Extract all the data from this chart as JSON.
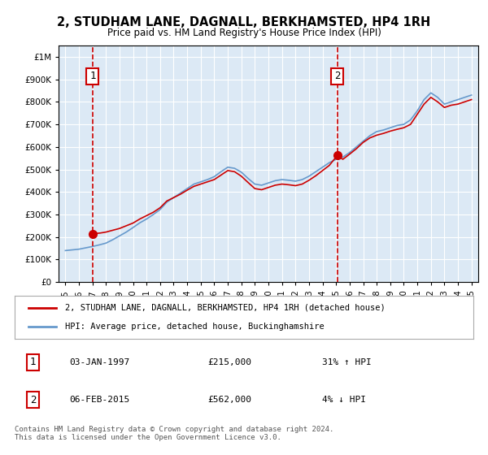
{
  "title": "2, STUDHAM LANE, DAGNALL, BERKHAMSTED, HP4 1RH",
  "subtitle": "Price paid vs. HM Land Registry's House Price Index (HPI)",
  "legend_entry1": "2, STUDHAM LANE, DAGNALL, BERKHAMSTED, HP4 1RH (detached house)",
  "legend_entry2": "HPI: Average price, detached house, Buckinghamshire",
  "annotation1_label": "1",
  "annotation1_date": "03-JAN-1997",
  "annotation1_price": "£215,000",
  "annotation1_hpi": "31% ↑ HPI",
  "annotation2_label": "2",
  "annotation2_date": "06-FEB-2015",
  "annotation2_price": "£562,000",
  "annotation2_hpi": "4% ↓ HPI",
  "footnote": "Contains HM Land Registry data © Crown copyright and database right 2024.\nThis data is licensed under the Open Government Licence v3.0.",
  "hpi_color": "#6699cc",
  "price_color": "#cc0000",
  "marker_color": "#cc0000",
  "dashed_color": "#cc0000",
  "background_color": "#dce9f5",
  "plot_bg": "#dce9f5",
  "ylim": [
    0,
    1050000
  ],
  "yticks": [
    0,
    100000,
    200000,
    300000,
    400000,
    500000,
    600000,
    700000,
    800000,
    900000,
    1000000
  ],
  "xlim_start": 1994.5,
  "xlim_end": 2025.5,
  "xticks": [
    1995,
    1996,
    1997,
    1998,
    1999,
    2000,
    2001,
    2002,
    2003,
    2004,
    2005,
    2006,
    2007,
    2008,
    2009,
    2010,
    2011,
    2012,
    2013,
    2014,
    2015,
    2016,
    2017,
    2018,
    2019,
    2020,
    2021,
    2022,
    2023,
    2024,
    2025
  ],
  "sale1_x": 1997.01,
  "sale1_y": 215000,
  "sale2_x": 2015.09,
  "sale2_y": 562000,
  "hpi_x": [
    1995,
    1995.5,
    1996,
    1996.5,
    1997,
    1997.5,
    1998,
    1998.5,
    1999,
    1999.5,
    2000,
    2000.5,
    2001,
    2001.5,
    2002,
    2002.5,
    2003,
    2003.5,
    2004,
    2004.5,
    2005,
    2005.5,
    2006,
    2006.5,
    2007,
    2007.5,
    2008,
    2008.5,
    2009,
    2009.5,
    2010,
    2010.5,
    2011,
    2011.5,
    2012,
    2012.5,
    2013,
    2013.5,
    2014,
    2014.5,
    2015,
    2015.5,
    2016,
    2016.5,
    2017,
    2017.5,
    2018,
    2018.5,
    2019,
    2019.5,
    2020,
    2020.5,
    2021,
    2021.5,
    2022,
    2022.5,
    2023,
    2023.5,
    2024,
    2024.5,
    2025
  ],
  "hpi_y": [
    140000,
    143000,
    146000,
    152000,
    158000,
    165000,
    173000,
    188000,
    205000,
    222000,
    242000,
    263000,
    280000,
    300000,
    322000,
    355000,
    375000,
    395000,
    415000,
    435000,
    445000,
    455000,
    468000,
    490000,
    510000,
    505000,
    488000,
    460000,
    435000,
    430000,
    440000,
    450000,
    455000,
    452000,
    448000,
    455000,
    470000,
    490000,
    510000,
    530000,
    545000,
    555000,
    575000,
    600000,
    625000,
    650000,
    668000,
    675000,
    685000,
    695000,
    700000,
    720000,
    760000,
    810000,
    840000,
    820000,
    790000,
    800000,
    810000,
    820000,
    830000
  ],
  "price_x": [
    1997.01,
    1997.3,
    1997.6,
    1998,
    1998.5,
    1999,
    1999.5,
    2000,
    2000.5,
    2001,
    2001.5,
    2002,
    2002.5,
    2003,
    2003.5,
    2004,
    2004.5,
    2005,
    2005.5,
    2006,
    2006.5,
    2007,
    2007.5,
    2008,
    2008.5,
    2009,
    2009.5,
    2010,
    2010.5,
    2011,
    2011.5,
    2012,
    2012.5,
    2013,
    2013.5,
    2014,
    2014.5,
    2015.09,
    2015.5,
    2016,
    2016.5,
    2017,
    2017.5,
    2018,
    2018.5,
    2019,
    2019.5,
    2020,
    2020.5,
    2021,
    2021.5,
    2022,
    2022.5,
    2023,
    2023.5,
    2024,
    2024.5,
    2025
  ],
  "price_y": [
    215000,
    216000,
    218000,
    222000,
    230000,
    238000,
    250000,
    262000,
    280000,
    295000,
    310000,
    330000,
    360000,
    375000,
    390000,
    408000,
    425000,
    435000,
    445000,
    455000,
    475000,
    495000,
    490000,
    470000,
    442000,
    415000,
    410000,
    420000,
    430000,
    435000,
    432000,
    428000,
    435000,
    452000,
    472000,
    495000,
    518000,
    562000,
    545000,
    568000,
    592000,
    620000,
    640000,
    652000,
    660000,
    670000,
    678000,
    685000,
    700000,
    745000,
    790000,
    820000,
    800000,
    775000,
    785000,
    790000,
    800000,
    810000
  ]
}
